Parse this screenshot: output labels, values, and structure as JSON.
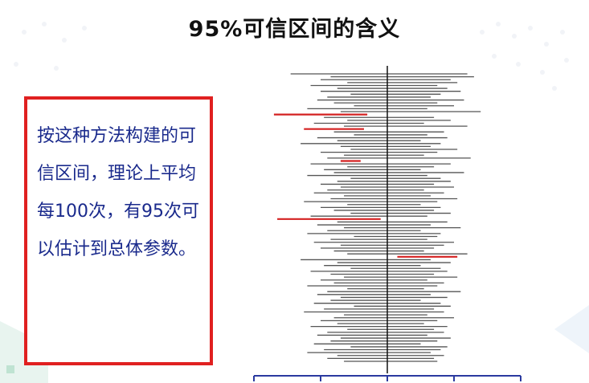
{
  "slide": {
    "title": "95%可信区间的含义"
  },
  "note": {
    "text": "按这种方法构建的可信区间，理论上平均每100次，有95次可以估计到总体参数。"
  },
  "colors": {
    "note_border": "#e02020",
    "note_text": "#1a2a8c",
    "interval_hit": "#555555",
    "interval_miss": "#d42020",
    "true_line": "#111111",
    "axis": "#2b3aa0"
  },
  "chart_data": {
    "type": "interval-plot",
    "true_value": 0,
    "xlim": [
      -4,
      4
    ],
    "x_ticks": [
      -4,
      -2,
      0,
      2,
      4
    ],
    "interval_count": 100,
    "intervals_containing_true": 95,
    "intervals": [
      [
        -2.9,
        2.4
      ],
      [
        -1.7,
        2.6
      ],
      [
        -2.0,
        1.9
      ],
      [
        -1.2,
        2.1
      ],
      [
        -2.3,
        1.5
      ],
      [
        -1.5,
        1.8
      ],
      [
        -2.0,
        2.2
      ],
      [
        -1.1,
        1.6
      ],
      [
        -1.8,
        1.3
      ],
      [
        -2.1,
        2.3
      ],
      [
        -1.6,
        1.5
      ],
      [
        -1.0,
        2.0
      ],
      [
        -2.4,
        1.2
      ],
      [
        -1.4,
        2.8
      ],
      [
        -3.4,
        -0.6
      ],
      [
        -1.9,
        1.4
      ],
      [
        -1.2,
        1.9
      ],
      [
        -2.2,
        1.1
      ],
      [
        -1.3,
        2.4
      ],
      [
        -2.5,
        -0.7
      ],
      [
        -1.6,
        1.7
      ],
      [
        -1.0,
        1.2
      ],
      [
        -2.1,
        1.8
      ],
      [
        -1.5,
        1.0
      ],
      [
        -2.6,
        1.6
      ],
      [
        -1.4,
        1.3
      ],
      [
        -1.1,
        2.1
      ],
      [
        -2.0,
        1.5
      ],
      [
        -1.3,
        1.1
      ],
      [
        -1.8,
        2.5
      ],
      [
        -1.4,
        -0.8
      ],
      [
        -2.3,
        1.9
      ],
      [
        -1.2,
        1.4
      ],
      [
        -1.9,
        1.0
      ],
      [
        -1.6,
        2.3
      ],
      [
        -2.4,
        1.2
      ],
      [
        -1.1,
        1.6
      ],
      [
        -1.5,
        1.9
      ],
      [
        -2.0,
        1.4
      ],
      [
        -1.4,
        2.0
      ],
      [
        -1.8,
        1.1
      ],
      [
        -2.2,
        1.7
      ],
      [
        -1.3,
        1.3
      ],
      [
        -1.7,
        2.1
      ],
      [
        -2.5,
        1.5
      ],
      [
        -1.2,
        1.0
      ],
      [
        -2.0,
        1.6
      ],
      [
        -1.6,
        1.4
      ],
      [
        -1.1,
        1.9
      ],
      [
        -2.3,
        1.2
      ],
      [
        -3.3,
        -0.2
      ],
      [
        -1.5,
        1.8
      ],
      [
        -2.1,
        1.3
      ],
      [
        -1.3,
        2.2
      ],
      [
        -1.8,
        1.0
      ],
      [
        -2.4,
        1.6
      ],
      [
        -1.0,
        1.5
      ],
      [
        -1.7,
        1.2
      ],
      [
        -2.2,
        2.0
      ],
      [
        -1.4,
        1.7
      ],
      [
        -2.0,
        1.4
      ],
      [
        -1.6,
        1.1
      ],
      [
        -1.2,
        2.4
      ],
      [
        0.3,
        2.1
      ],
      [
        -2.6,
        1.3
      ],
      [
        -1.5,
        1.9
      ],
      [
        -1.9,
        1.0
      ],
      [
        -1.1,
        1.6
      ],
      [
        -2.3,
        1.8
      ],
      [
        -1.7,
        1.4
      ],
      [
        -1.3,
        2.1
      ],
      [
        -2.0,
        1.2
      ],
      [
        -1.6,
        1.7
      ],
      [
        -2.4,
        1.5
      ],
      [
        -1.2,
        1.1
      ],
      [
        -1.8,
        2.2
      ],
      [
        -2.1,
        1.3
      ],
      [
        -1.4,
        1.8
      ],
      [
        -1.7,
        1.0
      ],
      [
        -2.2,
        1.6
      ],
      [
        -1.0,
        1.9
      ],
      [
        -1.9,
        1.4
      ],
      [
        -2.5,
        1.7
      ],
      [
        -1.3,
        1.2
      ],
      [
        -1.6,
        2.0
      ],
      [
        -2.0,
        1.5
      ],
      [
        -1.5,
        1.1
      ],
      [
        -2.3,
        1.8
      ],
      [
        -1.2,
        1.4
      ],
      [
        -1.8,
        1.7
      ],
      [
        -2.1,
        1.2
      ],
      [
        -1.4,
        1.9
      ],
      [
        -1.7,
        1.5
      ],
      [
        -2.2,
        1.0
      ],
      [
        -1.1,
        1.8
      ],
      [
        -1.9,
        1.6
      ],
      [
        -2.4,
        1.3
      ],
      [
        -1.5,
        1.7
      ],
      [
        -1.8,
        1.4
      ],
      [
        -1.3,
        1.5
      ]
    ]
  }
}
